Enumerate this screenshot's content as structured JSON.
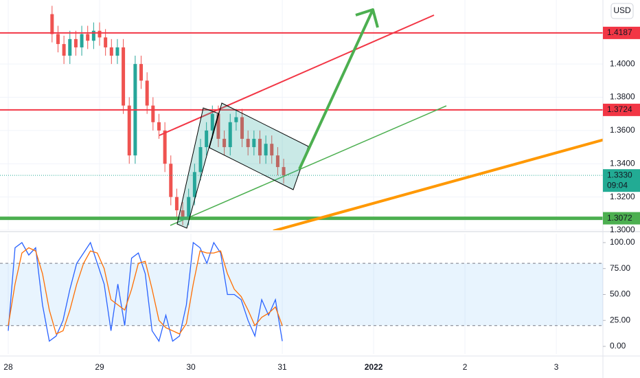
{
  "chart_data": [
    {
      "type": "candlestick",
      "currency": "USD",
      "x": [
        0.48,
        0.545,
        0.61,
        0.675,
        0.74,
        0.805,
        0.87,
        0.935,
        1.0,
        1.065,
        1.13,
        1.195,
        1.26,
        1.325,
        1.39,
        1.455,
        1.52,
        1.585,
        1.65,
        1.715,
        1.78,
        1.845,
        1.91,
        1.975,
        2.04,
        2.105,
        2.17,
        2.235,
        2.3,
        2.365,
        2.43,
        2.495,
        2.56,
        2.625,
        2.69,
        2.755,
        2.82,
        2.885,
        2.95,
        3.015
      ],
      "open": [
        1.43,
        1.418,
        1.412,
        1.405,
        1.415,
        1.41,
        1.418,
        1.414,
        1.42,
        1.416,
        1.41,
        1.405,
        1.41,
        1.375,
        1.345,
        1.4,
        1.39,
        1.375,
        1.365,
        1.36,
        1.34,
        1.32,
        1.312,
        1.308,
        1.32,
        1.335,
        1.35,
        1.36,
        1.37,
        1.355,
        1.35,
        1.365,
        1.368,
        1.355,
        1.35,
        1.355,
        1.345,
        1.352,
        1.345,
        1.338
      ],
      "high": [
        1.435,
        1.423,
        1.417,
        1.42,
        1.42,
        1.423,
        1.423,
        1.425,
        1.425,
        1.421,
        1.415,
        1.415,
        1.415,
        1.38,
        1.405,
        1.405,
        1.395,
        1.38,
        1.37,
        1.365,
        1.345,
        1.325,
        1.317,
        1.325,
        1.34,
        1.355,
        1.365,
        1.375,
        1.375,
        1.36,
        1.37,
        1.373,
        1.373,
        1.36,
        1.36,
        1.36,
        1.357,
        1.357,
        1.35,
        1.343
      ],
      "low": [
        1.413,
        1.407,
        1.4,
        1.4,
        1.405,
        1.405,
        1.409,
        1.409,
        1.411,
        1.405,
        1.4,
        1.4,
        1.37,
        1.34,
        1.34,
        1.385,
        1.37,
        1.36,
        1.355,
        1.335,
        1.315,
        1.307,
        1.303,
        1.303,
        1.315,
        1.33,
        1.345,
        1.355,
        1.35,
        1.345,
        1.345,
        1.36,
        1.35,
        1.345,
        1.345,
        1.34,
        1.34,
        1.34,
        1.333,
        1.328
      ],
      "close": [
        1.418,
        1.412,
        1.405,
        1.415,
        1.41,
        1.418,
        1.414,
        1.42,
        1.416,
        1.41,
        1.405,
        1.41,
        1.375,
        1.345,
        1.4,
        1.39,
        1.375,
        1.365,
        1.36,
        1.34,
        1.32,
        1.312,
        1.308,
        1.32,
        1.335,
        1.35,
        1.36,
        1.37,
        1.355,
        1.35,
        1.365,
        1.368,
        1.355,
        1.35,
        1.355,
        1.345,
        1.352,
        1.345,
        1.338,
        1.333
      ],
      "up_color": "#26a69a",
      "down_color": "#ef5350",
      "xlim": [
        -0.09,
        6.51
      ],
      "xticks": [
        {
          "value": 0,
          "label": "28"
        },
        {
          "value": 1,
          "label": "29"
        },
        {
          "value": 2,
          "label": "30"
        },
        {
          "value": 3,
          "label": "31"
        },
        {
          "value": 4,
          "label": "2022"
        },
        {
          "value": 5,
          "label": "2"
        },
        {
          "value": 6,
          "label": "3"
        }
      ],
      "ylim": [
        1.3,
        1.4385
      ],
      "yticks": [
        {
          "value": 1.3,
          "label": "1.3000"
        },
        {
          "value": 1.32,
          "label": "1.3200"
        },
        {
          "value": 1.34,
          "label": "1.3400"
        },
        {
          "value": 1.36,
          "label": "1.3600"
        },
        {
          "value": 1.38,
          "label": "1.3800"
        },
        {
          "value": 1.4,
          "label": "1.4000"
        }
      ],
      "price_lines": [
        {
          "value": 1.4187,
          "color": "#f23645"
        },
        {
          "value": 1.3724,
          "color": "#f23645"
        },
        {
          "value": 1.3072,
          "color": "#4caf50"
        }
      ],
      "last_price": {
        "value": 1.333,
        "label": "1.3330",
        "countdown": "09:04",
        "color": "#22ab94"
      }
    },
    {
      "type": "line",
      "x": [
        0,
        0.075,
        0.15,
        0.225,
        0.3,
        0.375,
        0.45,
        0.525,
        0.6,
        0.675,
        0.75,
        0.825,
        0.9,
        0.975,
        1.05,
        1.125,
        1.2,
        1.275,
        1.35,
        1.425,
        1.5,
        1.575,
        1.65,
        1.725,
        1.8,
        1.875,
        1.95,
        2.025,
        2.1,
        2.175,
        2.25,
        2.325,
        2.4,
        2.475,
        2.55,
        2.625,
        2.7,
        2.775,
        2.85,
        2.925,
        3.0
      ],
      "series": [
        {
          "color": "#2962ff",
          "values": [
            15,
            95,
            100,
            88,
            95,
            40,
            5,
            10,
            25,
            55,
            80,
            90,
            100,
            80,
            60,
            15,
            60,
            20,
            85,
            90,
            70,
            15,
            5,
            30,
            5,
            10,
            40,
            100,
            95,
            80,
            100,
            90,
            50,
            50,
            45,
            25,
            10,
            45,
            30,
            45,
            5
          ]
        },
        {
          "color": "#ff6d00",
          "values": [
            20,
            60,
            90,
            95,
            92,
            70,
            35,
            12,
            15,
            35,
            60,
            80,
            92,
            90,
            75,
            45,
            40,
            35,
            55,
            80,
            82,
            55,
            25,
            18,
            15,
            12,
            22,
            60,
            92,
            90,
            90,
            92,
            70,
            55,
            48,
            35,
            20,
            28,
            32,
            38,
            20
          ]
        }
      ],
      "ylim": [
        -7.3,
        108.6
      ],
      "yticks": [
        {
          "value": 0,
          "label": "0.00"
        },
        {
          "value": 25,
          "label": "25.00"
        },
        {
          "value": 50,
          "label": "50.00"
        },
        {
          "value": 75,
          "label": "75.00"
        },
        {
          "value": 100,
          "label": "100.00"
        }
      ],
      "band": [
        20,
        80
      ],
      "band_color": "#2196f3"
    }
  ]
}
